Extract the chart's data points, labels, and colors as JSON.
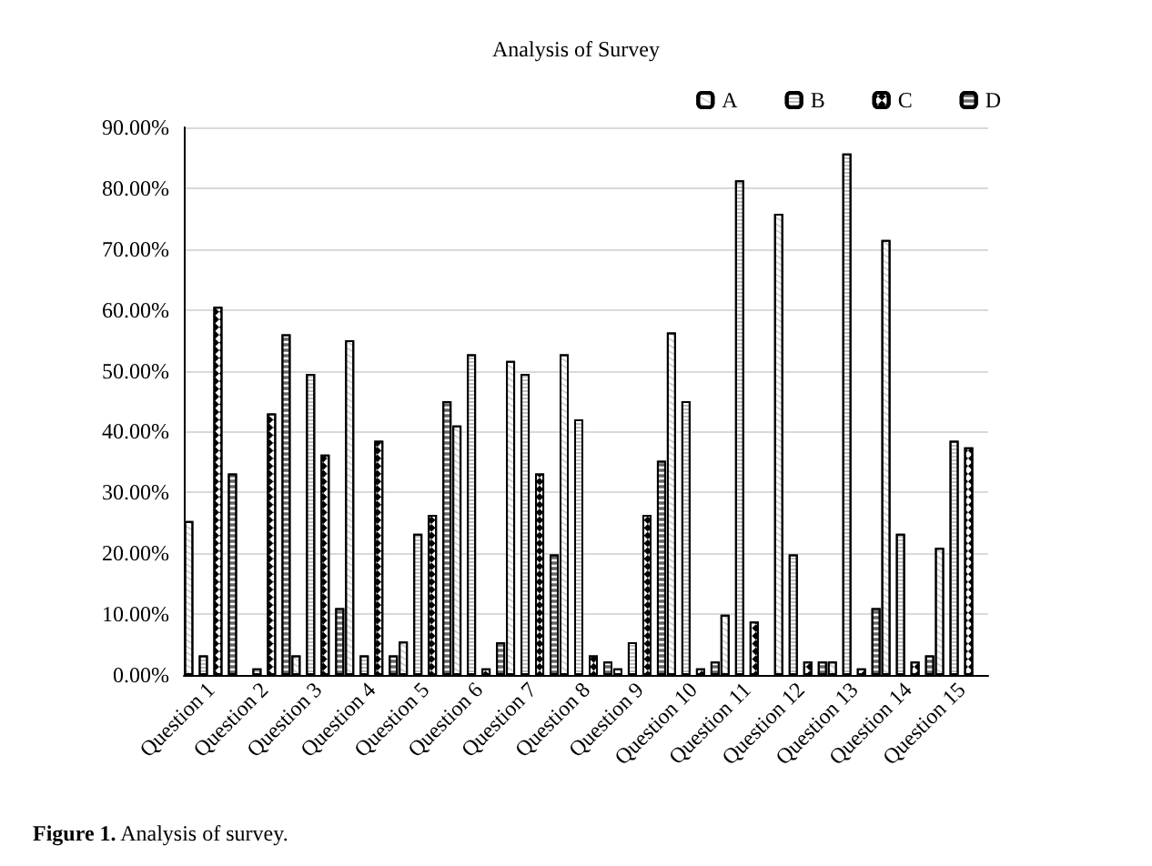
{
  "chart_data": {
    "type": "bar",
    "title": "Analysis of Survey",
    "categories": [
      "Question 1",
      "Question 2",
      "Question 3",
      "Question 4",
      "Question 5",
      "Question 6",
      "Question 7",
      "Question 8",
      "Question 9",
      "Question 10",
      "Question 11",
      "Question 12",
      "Question 13",
      "Question 14",
      "Question 15"
    ],
    "series": [
      {
        "name": "A",
        "color": "#ffffff",
        "values": [
          25.3,
          0,
          3.2,
          55.0,
          5.5,
          41.0,
          51.6,
          52.7,
          1.1,
          56.3,
          9.9,
          75.8,
          2.2,
          71.5,
          20.9
        ]
      },
      {
        "name": "B",
        "color": "#ffffff",
        "values": [
          3.2,
          1.1,
          49.5,
          3.2,
          23.2,
          52.7,
          49.5,
          42.0,
          5.4,
          45.0,
          81.3,
          19.8,
          85.7,
          23.2,
          38.5
        ]
      },
      {
        "name": "C",
        "color": "#ffffff",
        "values": [
          60.5,
          43.0,
          36.2,
          38.5,
          26.3,
          1.1,
          33.1,
          3.2,
          26.3,
          1.1,
          8.8,
          2.2,
          1.1,
          2.2,
          37.4
        ]
      },
      {
        "name": "D",
        "color": "#ffffff",
        "values": [
          33.1,
          56.0,
          11.0,
          3.2,
          45.0,
          5.4,
          19.8,
          2.2,
          35.2,
          2.2,
          0,
          2.2,
          11.0,
          3.2,
          0
        ]
      }
    ],
    "ylim": [
      0,
      90
    ],
    "yticks": [
      {
        "value": 0,
        "label": "0.00%"
      },
      {
        "value": 10,
        "label": "10.00%"
      },
      {
        "value": 20,
        "label": "20.00%"
      },
      {
        "value": 30,
        "label": "30.00%"
      },
      {
        "value": 40,
        "label": "40.00%"
      },
      {
        "value": 50,
        "label": "50.00%"
      },
      {
        "value": 60,
        "label": "60.00%"
      },
      {
        "value": 70,
        "label": "70.00%"
      },
      {
        "value": 80,
        "label": "80.00%"
      },
      {
        "value": 90,
        "label": "90.00%"
      }
    ],
    "grid": "y",
    "legend": "top right",
    "annotations": [
      "Figure 1. Analysis of survey."
    ]
  }
}
